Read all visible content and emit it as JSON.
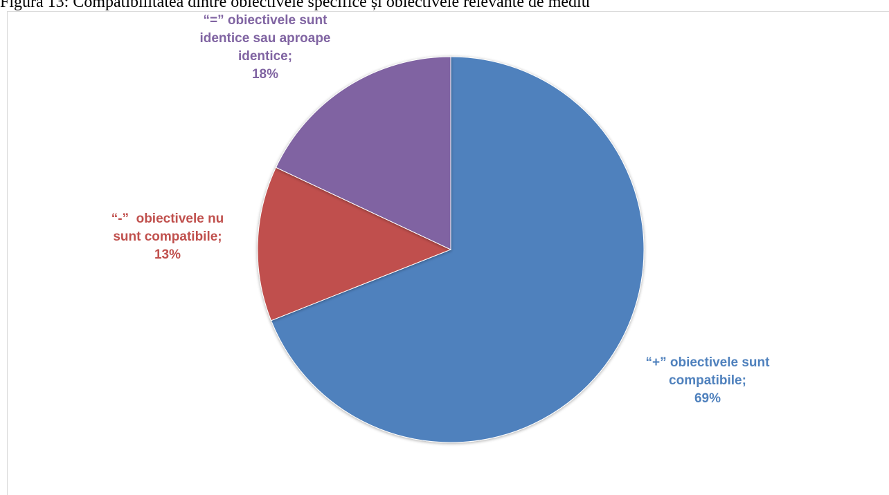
{
  "caption": "Figura 13: Compatibilitatea dintre obiectivele specifice și obiectivele relevante de mediu",
  "chart_data": {
    "type": "pie",
    "title": "",
    "start_angle_deg": 0,
    "direction": "clockwise",
    "slices": [
      {
        "label_lines": [
          "“+” obiectivele sunt",
          "compatibile;"
        ],
        "percent_label": "69%",
        "value": 69,
        "color": "#4f81bd"
      },
      {
        "label_lines": [
          "“-”  obiectivele nu",
          "sunt compatibile;"
        ],
        "percent_label": "13%",
        "value": 13,
        "color": "#c0504d"
      },
      {
        "label_lines": [
          "“=” obiectivele sunt",
          "identice sau aproape",
          "identice;"
        ],
        "percent_label": "18%",
        "value": 18,
        "color": "#8064a2"
      }
    ]
  }
}
